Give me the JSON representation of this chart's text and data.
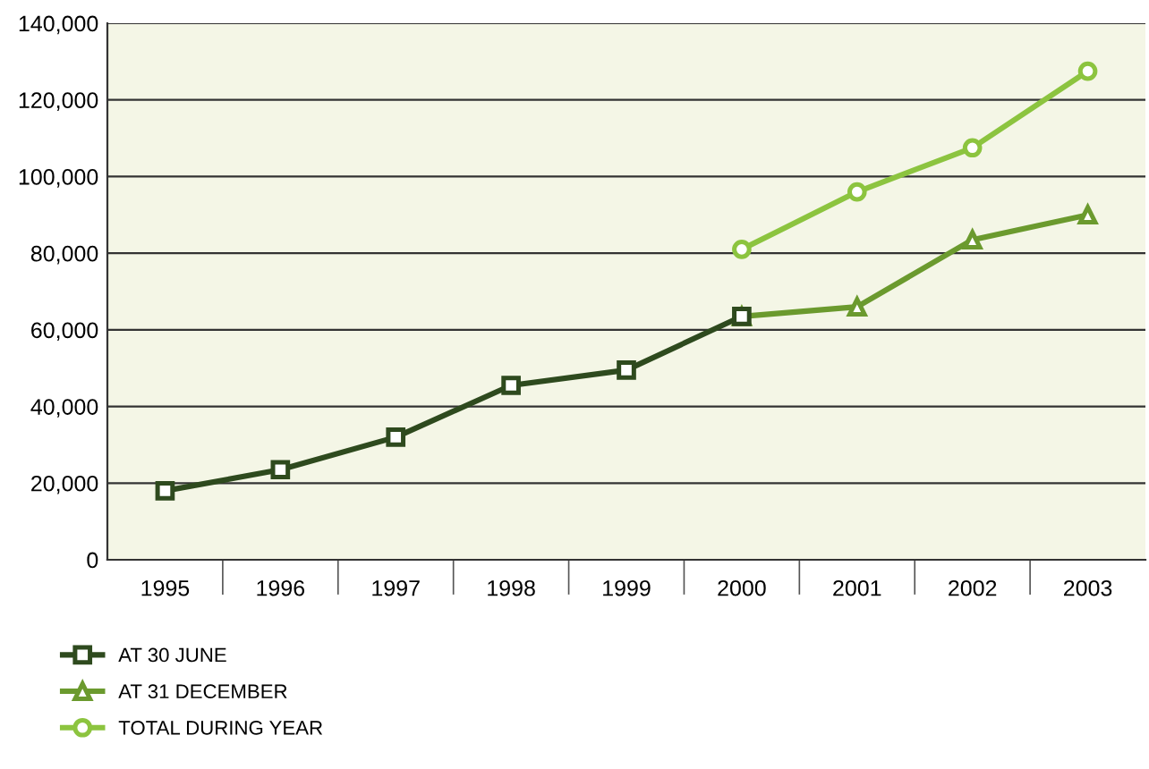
{
  "chart_data": {
    "type": "line",
    "categories": [
      "1995",
      "1996",
      "1997",
      "1998",
      "1999",
      "2000",
      "2001",
      "2002",
      "2003"
    ],
    "series": [
      {
        "name": "AT 30 JUNE",
        "color": "#2e4a1e",
        "marker": "square",
        "values": [
          18000,
          23500,
          32000,
          45500,
          49500,
          63500,
          null,
          null,
          null
        ]
      },
      {
        "name": "AT 31 DECEMBER",
        "color": "#6b9a2e",
        "marker": "triangle",
        "values": [
          null,
          null,
          null,
          null,
          null,
          63500,
          66000,
          83500,
          90000
        ]
      },
      {
        "name": "TOTAL DURING YEAR",
        "color": "#8cc43f",
        "marker": "circle",
        "values": [
          null,
          null,
          null,
          null,
          null,
          81000,
          96000,
          107500,
          127500
        ]
      }
    ],
    "ylim": [
      0,
      140000
    ],
    "yticks": [
      {
        "value": 0,
        "label": "0"
      },
      {
        "value": 20000,
        "label": "20,000"
      },
      {
        "value": 40000,
        "label": "40,000"
      },
      {
        "value": 60000,
        "label": "60,000"
      },
      {
        "value": 80000,
        "label": "80,000"
      },
      {
        "value": 100000,
        "label": "100,000"
      },
      {
        "value": 120000,
        "label": "120,000"
      },
      {
        "value": 140000,
        "label": "140,000"
      }
    ],
    "grid": "y",
    "legend": "bottom left",
    "line_style": "solid"
  }
}
